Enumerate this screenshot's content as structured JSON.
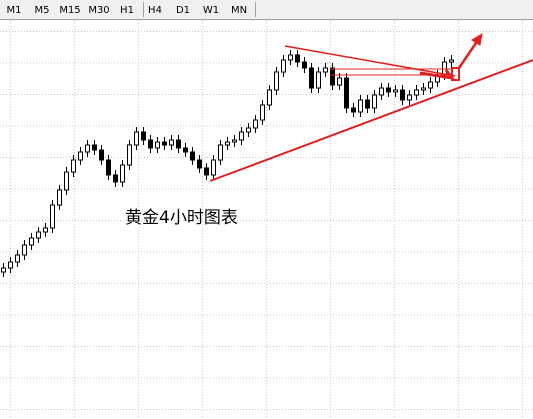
{
  "toolbar": {
    "buttons": [
      "M1",
      "M5",
      "M15",
      "M30",
      "H1",
      "H4",
      "D1",
      "W1",
      "MN"
    ]
  },
  "chart_data": {
    "type": "candlestick",
    "annotation": "黄金4小时图表",
    "ylim": [
      0,
      419
    ],
    "up_color": "#ffffff",
    "down_color": "#000000",
    "wick_color": "#000000",
    "grid": true,
    "candles": [
      [
        147,
        156,
        142,
        151
      ],
      [
        151,
        162,
        146,
        157
      ],
      [
        157,
        169,
        152,
        164
      ],
      [
        164,
        179,
        159,
        174
      ],
      [
        174,
        186,
        169,
        181
      ],
      [
        181,
        192,
        176,
        187
      ],
      [
        187,
        196,
        182,
        191
      ],
      [
        191,
        219,
        186,
        214
      ],
      [
        214,
        234,
        209,
        229
      ],
      [
        229,
        252,
        224,
        247
      ],
      [
        247,
        264,
        242,
        259
      ],
      [
        259,
        272,
        254,
        267
      ],
      [
        267,
        279,
        262,
        274
      ],
      [
        274,
        279,
        264,
        269
      ],
      [
        269,
        274,
        254,
        259
      ],
      [
        259,
        264,
        239,
        244
      ],
      [
        244,
        249,
        232,
        237
      ],
      [
        237,
        259,
        232,
        254
      ],
      [
        254,
        279,
        249,
        274
      ],
      [
        274,
        292,
        269,
        287
      ],
      [
        287,
        292,
        274,
        279
      ],
      [
        279,
        284,
        266,
        271
      ],
      [
        271,
        282,
        266,
        277
      ],
      [
        277,
        282,
        269,
        274
      ],
      [
        274,
        284,
        269,
        279
      ],
      [
        279,
        284,
        266,
        271
      ],
      [
        271,
        276,
        262,
        267
      ],
      [
        267,
        272,
        254,
        259
      ],
      [
        259,
        264,
        246,
        251
      ],
      [
        251,
        256,
        239,
        244
      ],
      [
        244,
        264,
        239,
        259
      ],
      [
        259,
        279,
        254,
        274
      ],
      [
        274,
        282,
        269,
        277
      ],
      [
        277,
        284,
        272,
        279
      ],
      [
        279,
        292,
        274,
        287
      ],
      [
        287,
        296,
        282,
        291
      ],
      [
        291,
        304,
        286,
        299
      ],
      [
        299,
        319,
        294,
        314
      ],
      [
        314,
        334,
        309,
        329
      ],
      [
        329,
        352,
        324,
        347
      ],
      [
        347,
        364,
        342,
        359
      ],
      [
        359,
        369,
        354,
        364
      ],
      [
        364,
        369,
        352,
        357
      ],
      [
        357,
        362,
        346,
        351
      ],
      [
        351,
        356,
        326,
        331
      ],
      [
        331,
        352,
        326,
        347
      ],
      [
        347,
        356,
        342,
        351
      ],
      [
        351,
        356,
        329,
        334
      ],
      [
        334,
        346,
        329,
        341
      ],
      [
        341,
        346,
        306,
        311
      ],
      [
        311,
        316,
        302,
        307
      ],
      [
        307,
        324,
        302,
        319
      ],
      [
        319,
        324,
        306,
        311
      ],
      [
        311,
        329,
        306,
        324
      ],
      [
        324,
        336,
        319,
        331
      ],
      [
        331,
        336,
        322,
        327
      ],
      [
        327,
        334,
        322,
        329
      ],
      [
        329,
        334,
        314,
        319
      ],
      [
        319,
        329,
        314,
        324
      ],
      [
        324,
        334,
        319,
        329
      ],
      [
        329,
        336,
        324,
        331
      ],
      [
        331,
        342,
        326,
        337
      ],
      [
        337,
        349,
        332,
        344
      ],
      [
        344,
        362,
        339,
        357
      ],
      [
        357,
        364,
        352,
        359
      ]
    ]
  }
}
